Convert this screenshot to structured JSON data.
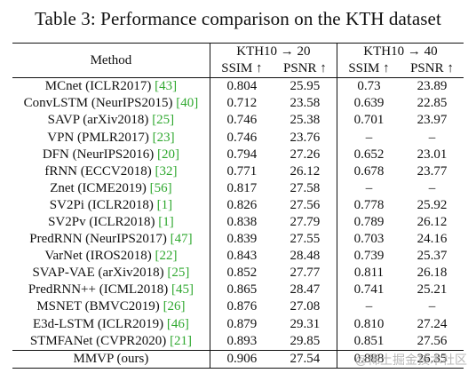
{
  "title": "Table 3: Performance comparison on the KTH dataset",
  "header": {
    "method": "Method",
    "group1": "KTH10 → 20",
    "group2": "KTH10 → 40",
    "ssim": "SSIM ↑",
    "psnr": "PSNR ↑"
  },
  "rows": [
    {
      "name": "MCnet (ICLR2017) ",
      "cite": "[43]",
      "ssim20": "0.804",
      "psnr20": "25.95",
      "ssim40": "0.73",
      "psnr40": "23.89"
    },
    {
      "name": "ConvLSTM (NeurIPS2015) ",
      "cite": "[40]",
      "ssim20": "0.712",
      "psnr20": "23.58",
      "ssim40": "0.639",
      "psnr40": "22.85"
    },
    {
      "name": "SAVP (arXiv2018) ",
      "cite": "[25]",
      "ssim20": "0.746",
      "psnr20": "25.38",
      "ssim40": "0.701",
      "psnr40": "23.97"
    },
    {
      "name": "VPN (PMLR2017) ",
      "cite": "[23]",
      "ssim20": "0.746",
      "psnr20": "23.76",
      "ssim40": "–",
      "psnr40": "–"
    },
    {
      "name": "DFN (NeurIPS2016) ",
      "cite": "[20]",
      "ssim20": "0.794",
      "psnr20": "27.26",
      "ssim40": "0.652",
      "psnr40": "23.01"
    },
    {
      "name": "fRNN (ECCV2018) ",
      "cite": "[32]",
      "ssim20": "0.771",
      "psnr20": "26.12",
      "ssim40": "0.678",
      "psnr40": "23.77"
    },
    {
      "name": "Znet (ICME2019) ",
      "cite": "[56]",
      "ssim20": "0.817",
      "psnr20": "27.58",
      "ssim40": "–",
      "psnr40": "–"
    },
    {
      "name": "SV2Pi (ICLR2018) ",
      "cite": "[1]",
      "ssim20": "0.826",
      "psnr20": "27.56",
      "ssim40": "0.778",
      "psnr40": "25.92"
    },
    {
      "name": "SV2Pv (ICLR2018) ",
      "cite": "[1]",
      "ssim20": "0.838",
      "psnr20": "27.79",
      "ssim40": "0.789",
      "psnr40": "26.12"
    },
    {
      "name": "PredRNN (NeurIPS2017) ",
      "cite": "[47]",
      "ssim20": "0.839",
      "psnr20": "27.55",
      "ssim40": "0.703",
      "psnr40": "24.16"
    },
    {
      "name": "VarNet (IROS2018) ",
      "cite": "[22]",
      "ssim20": "0.843",
      "psnr20": "28.48",
      "ssim40": "0.739",
      "psnr40": "25.37"
    },
    {
      "name": "SVAP-VAE (arXiv2018) ",
      "cite": "[25]",
      "ssim20": "0.852",
      "psnr20": "27.77",
      "ssim40": "0.811",
      "psnr40": "26.18"
    },
    {
      "name": "PredRNN++ (ICML2018) ",
      "cite": "[45]",
      "ssim20": "0.865",
      "psnr20": "28.47",
      "ssim40": "0.741",
      "psnr40": "25.21"
    },
    {
      "name": "MSNET (BMVC2019) ",
      "cite": "[26]",
      "ssim20": "0.876",
      "psnr20": "27.08",
      "ssim40": "–",
      "psnr40": "–"
    },
    {
      "name": "E3d-LSTM (ICLR2019) ",
      "cite": "[46]",
      "ssim20": "0.879",
      "psnr20": "29.31",
      "ssim40": "0.810",
      "psnr40": "27.24"
    },
    {
      "name": "STMFANet (CVPR2020) ",
      "cite": "[21]",
      "ssim20": "0.893",
      "psnr20": "29.85",
      "ssim40": "0.851",
      "psnr40": "27.56"
    }
  ],
  "ours": {
    "name": "MMVP (ours)",
    "ssim20": "0.906",
    "psnr20": "27.54",
    "ssim40": "0.888",
    "psnr40": "26.35"
  },
  "watermark": "@稀土掘金技术社区"
}
